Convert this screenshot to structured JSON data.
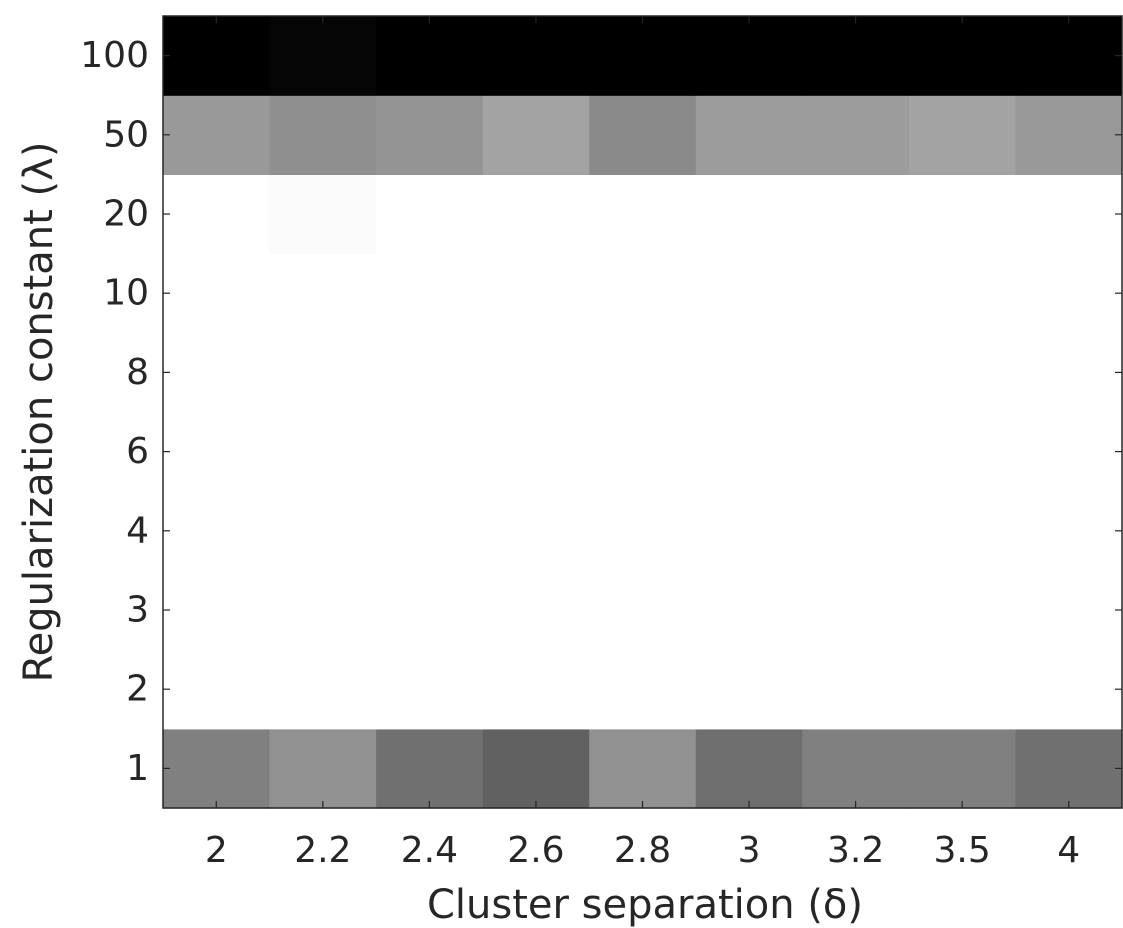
{
  "chart_data": {
    "type": "heatmap",
    "xlabel": "Cluster separation (δ)",
    "ylabel": "Regularization constant (λ)",
    "x_categories": [
      "2",
      "2.2",
      "2.4",
      "2.6",
      "2.8",
      "3",
      "3.2",
      "3.5",
      "4"
    ],
    "y_categories": [
      "1",
      "2",
      "3",
      "4",
      "6",
      "8",
      "10",
      "20",
      "50",
      "100"
    ],
    "colormap": "gray",
    "value_range": [
      0,
      1
    ],
    "grid": false,
    "colorbar": false,
    "values": [
      [
        0.5,
        0.57,
        0.44,
        0.38,
        0.57,
        0.43,
        0.5,
        0.5,
        0.44
      ],
      [
        1,
        1,
        1,
        1,
        1,
        1,
        1,
        1,
        1
      ],
      [
        1,
        1,
        1,
        1,
        1,
        1,
        1,
        1,
        1
      ],
      [
        1,
        1,
        1,
        1,
        1,
        1,
        1,
        1,
        1
      ],
      [
        1,
        1,
        1,
        1,
        1,
        1,
        1,
        1,
        1
      ],
      [
        1,
        1,
        1,
        1,
        1,
        1,
        1,
        1,
        1
      ],
      [
        1,
        1,
        1,
        1,
        1,
        1,
        1,
        1,
        1
      ],
      [
        1,
        0.98,
        1,
        1,
        1,
        1,
        1,
        1,
        1
      ],
      [
        0.6,
        0.56,
        0.58,
        0.64,
        0.54,
        0.61,
        0.61,
        0.64,
        0.6
      ],
      [
        0.0,
        0.02,
        0.0,
        0.0,
        0.0,
        0.0,
        0.0,
        0.0,
        0.0
      ]
    ]
  }
}
